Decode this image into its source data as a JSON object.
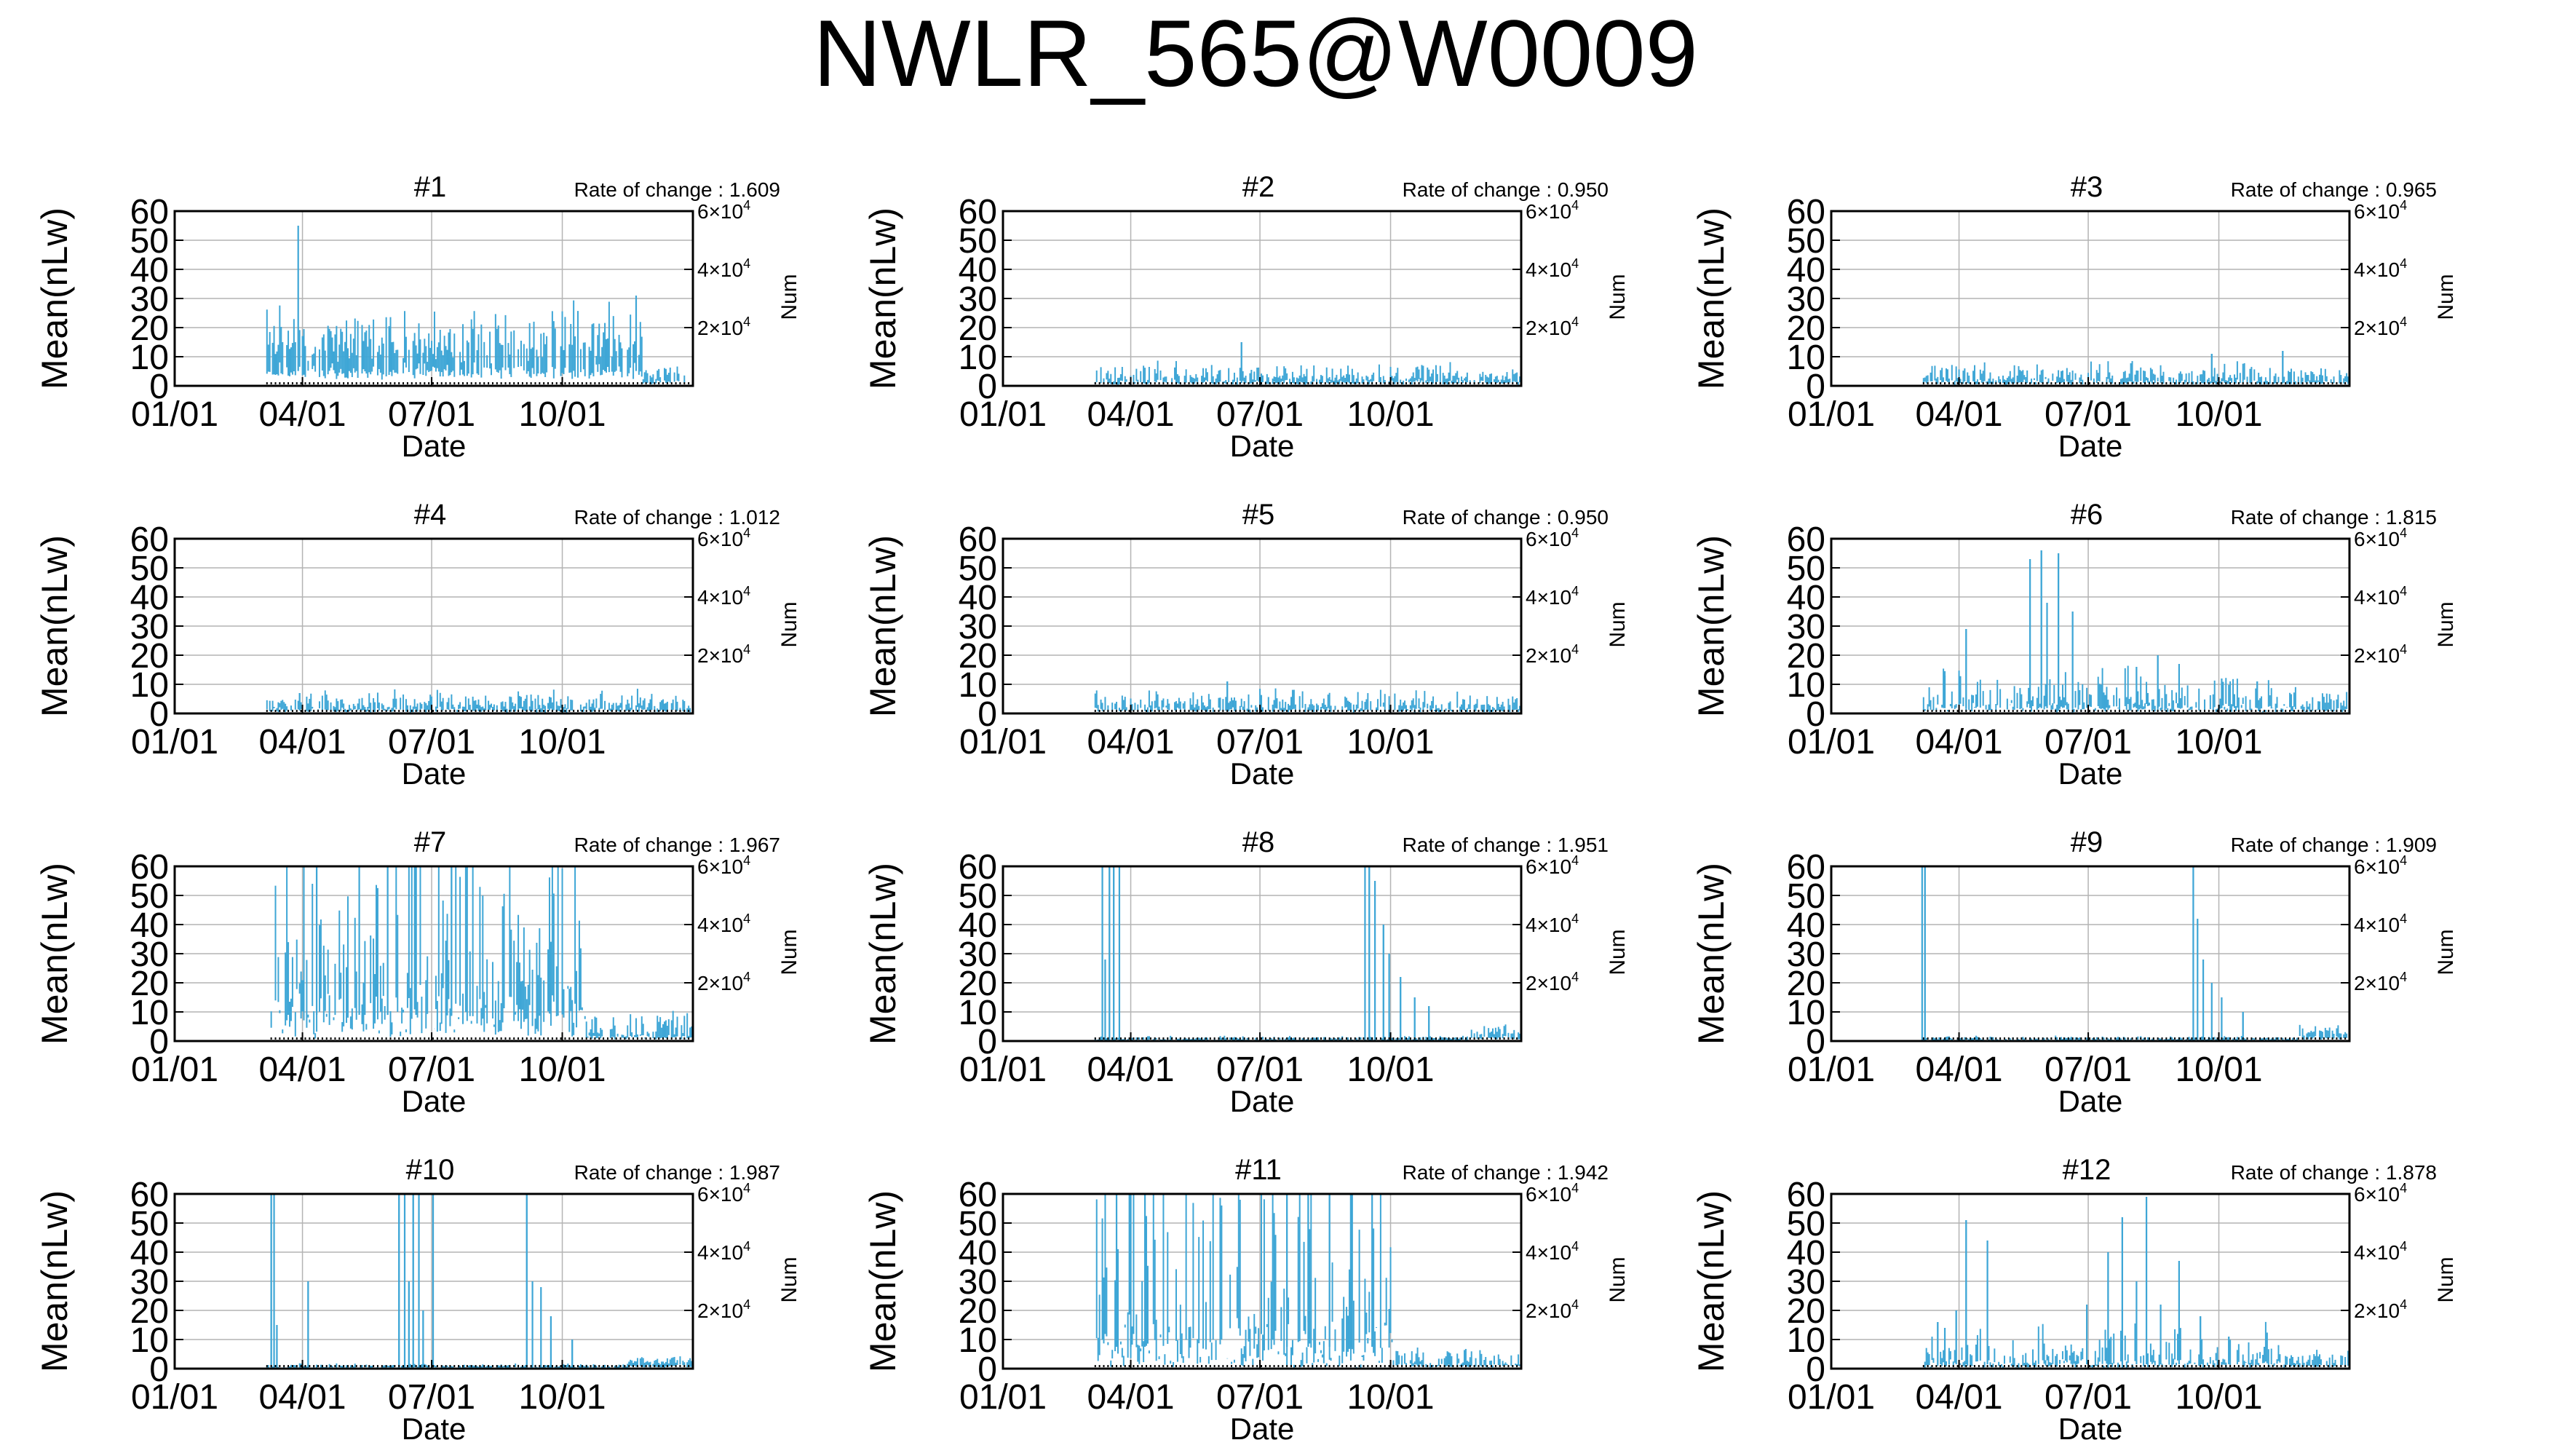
{
  "title": "NWLR_565@W0009",
  "colors": {
    "series": "#3ea6d6",
    "grid": "#b4b4b4",
    "axis": "#000000",
    "background": "#ffffff"
  },
  "chart_data": [
    {
      "type": "bar",
      "title": "#1",
      "rate_label": "Rate of change : 1.609",
      "xlabel": "Date",
      "ylabel": "Mean(nLw)",
      "y2label": "Num",
      "xticks": [
        "01/01",
        "04/01",
        "07/01",
        "10/01"
      ],
      "xtick_days": [
        0,
        90,
        181,
        273
      ],
      "xlim": [
        0,
        365
      ],
      "yticks": [
        0,
        10,
        20,
        30,
        40,
        50,
        60
      ],
      "ylim": [
        0,
        60
      ],
      "y2ticks": [
        {
          "base": "2×10",
          "exp": "4"
        },
        {
          "base": "4×10",
          "exp": "4"
        },
        {
          "base": "6×10",
          "exp": "4"
        }
      ],
      "y2lim": [
        0,
        60000
      ],
      "grid": true,
      "data_start_day": 65,
      "data_end_day": 365,
      "base": 17,
      "spread": 4,
      "noise": 0.45,
      "peaks": [
        {
          "day": 87,
          "value": 55
        },
        {
          "day": 325,
          "value": 31
        }
      ],
      "late_level": 5,
      "late_start": 330
    },
    {
      "type": "bar",
      "title": "#2",
      "rate_label": "Rate of change : 0.950",
      "xlabel": "Date",
      "ylabel": "Mean(nLw)",
      "y2label": "Num",
      "xticks": [
        "01/01",
        "04/01",
        "07/01",
        "10/01"
      ],
      "xtick_days": [
        0,
        90,
        181,
        273
      ],
      "xlim": [
        0,
        365
      ],
      "yticks": [
        0,
        10,
        20,
        30,
        40,
        50,
        60
      ],
      "ylim": [
        0,
        60
      ],
      "y2ticks": [
        {
          "base": "2×10",
          "exp": "4"
        },
        {
          "base": "4×10",
          "exp": "4"
        },
        {
          "base": "6×10",
          "exp": "4"
        }
      ],
      "y2lim": [
        0,
        60000
      ],
      "grid": true,
      "data_start_day": 65,
      "data_end_day": 365,
      "base": 4,
      "spread": 2,
      "noise": 0.5,
      "peaks": [
        {
          "day": 168,
          "value": 15
        }
      ],
      "late_level": 4,
      "late_start": 330
    },
    {
      "type": "bar",
      "title": "#3",
      "rate_label": "Rate of change : 0.965",
      "xlabel": "Date",
      "ylabel": "Mean(nLw)",
      "y2label": "Num",
      "xticks": [
        "01/01",
        "04/01",
        "07/01",
        "10/01"
      ],
      "xtick_days": [
        0,
        90,
        181,
        273
      ],
      "xlim": [
        0,
        365
      ],
      "yticks": [
        0,
        10,
        20,
        30,
        40,
        50,
        60
      ],
      "ylim": [
        0,
        60
      ],
      "y2ticks": [
        {
          "base": "2×10",
          "exp": "4"
        },
        {
          "base": "4×10",
          "exp": "4"
        },
        {
          "base": "6×10",
          "exp": "4"
        }
      ],
      "y2lim": [
        0,
        60000
      ],
      "grid": true,
      "data_start_day": 65,
      "data_end_day": 365,
      "base": 4,
      "spread": 2,
      "noise": 0.5,
      "peaks": [
        {
          "day": 268,
          "value": 11
        },
        {
          "day": 318,
          "value": 12
        }
      ],
      "late_level": 4,
      "late_start": 330
    },
    {
      "type": "bar",
      "title": "#4",
      "rate_label": "Rate of change : 1.012",
      "xlabel": "Date",
      "ylabel": "Mean(nLw)",
      "y2label": "Num",
      "xticks": [
        "01/01",
        "04/01",
        "07/01",
        "10/01"
      ],
      "xtick_days": [
        0,
        90,
        181,
        273
      ],
      "xlim": [
        0,
        365
      ],
      "yticks": [
        0,
        10,
        20,
        30,
        40,
        50,
        60
      ],
      "ylim": [
        0,
        60
      ],
      "y2ticks": [
        {
          "base": "2×10",
          "exp": "4"
        },
        {
          "base": "4×10",
          "exp": "4"
        },
        {
          "base": "6×10",
          "exp": "4"
        }
      ],
      "y2lim": [
        0,
        60000
      ],
      "grid": true,
      "data_start_day": 65,
      "data_end_day": 365,
      "base": 4,
      "spread": 2,
      "noise": 0.5,
      "peaks": [
        {
          "day": 88,
          "value": 7
        }
      ],
      "late_level": 4,
      "late_start": 330
    },
    {
      "type": "bar",
      "title": "#5",
      "rate_label": "Rate of change : 0.950",
      "xlabel": "Date",
      "ylabel": "Mean(nLw)",
      "y2label": "Num",
      "xticks": [
        "01/01",
        "04/01",
        "07/01",
        "10/01"
      ],
      "xtick_days": [
        0,
        90,
        181,
        273
      ],
      "xlim": [
        0,
        365
      ],
      "yticks": [
        0,
        10,
        20,
        30,
        40,
        50,
        60
      ],
      "ylim": [
        0,
        60
      ],
      "y2ticks": [
        {
          "base": "2×10",
          "exp": "4"
        },
        {
          "base": "4×10",
          "exp": "4"
        },
        {
          "base": "6×10",
          "exp": "4"
        }
      ],
      "y2lim": [
        0,
        60000
      ],
      "grid": true,
      "data_start_day": 65,
      "data_end_day": 365,
      "base": 4,
      "spread": 2,
      "noise": 0.5,
      "peaks": [
        {
          "day": 158,
          "value": 11
        }
      ],
      "late_level": 4,
      "late_start": 330
    },
    {
      "type": "bar",
      "title": "#6",
      "rate_label": "Rate of change : 1.815",
      "xlabel": "Date",
      "ylabel": "Mean(nLw)",
      "y2label": "Num",
      "xticks": [
        "01/01",
        "04/01",
        "07/01",
        "10/01"
      ],
      "xtick_days": [
        0,
        90,
        181,
        273
      ],
      "xlim": [
        0,
        365
      ],
      "yticks": [
        0,
        10,
        20,
        30,
        40,
        50,
        60
      ],
      "ylim": [
        0,
        60
      ],
      "y2ticks": [
        {
          "base": "2×10",
          "exp": "4"
        },
        {
          "base": "4×10",
          "exp": "4"
        },
        {
          "base": "6×10",
          "exp": "4"
        }
      ],
      "y2lim": [
        0,
        60000
      ],
      "grid": true,
      "data_start_day": 65,
      "data_end_day": 365,
      "base": 6,
      "spread": 4,
      "noise": 0.8,
      "peaks": [
        {
          "day": 80,
          "value": 13
        },
        {
          "day": 95,
          "value": 29
        },
        {
          "day": 140,
          "value": 53
        },
        {
          "day": 148,
          "value": 56
        },
        {
          "day": 152,
          "value": 38
        },
        {
          "day": 160,
          "value": 55
        },
        {
          "day": 170,
          "value": 35
        },
        {
          "day": 215,
          "value": 16
        },
        {
          "day": 230,
          "value": 20
        },
        {
          "day": 245,
          "value": 17
        },
        {
          "day": 275,
          "value": 12
        },
        {
          "day": 300,
          "value": 11
        }
      ],
      "late_level": 4,
      "late_start": 330
    },
    {
      "type": "bar",
      "title": "#7",
      "rate_label": "Rate of change : 1.967",
      "xlabel": "Date",
      "ylabel": "Mean(nLw)",
      "y2label": "Num",
      "xticks": [
        "01/01",
        "04/01",
        "07/01",
        "10/01"
      ],
      "xtick_days": [
        0,
        90,
        181,
        273
      ],
      "xlim": [
        0,
        365
      ],
      "yticks": [
        0,
        10,
        20,
        30,
        40,
        50,
        60
      ],
      "ylim": [
        0,
        60
      ],
      "y2ticks": [
        {
          "base": "2×10",
          "exp": "4"
        },
        {
          "base": "4×10",
          "exp": "4"
        },
        {
          "base": "6×10",
          "exp": "4"
        }
      ],
      "y2lim": [
        0,
        60000
      ],
      "grid": true,
      "data_start_day": 68,
      "data_end_day": 365,
      "base": 30,
      "spread": 25,
      "noise": 0.9,
      "peaks": [
        {
          "day": 100,
          "value": 60
        },
        {
          "day": 130,
          "value": 60
        },
        {
          "day": 150,
          "value": 60
        },
        {
          "day": 170,
          "value": 60
        },
        {
          "day": 195,
          "value": 60
        }
      ],
      "late_level": 5,
      "late_start": 290
    },
    {
      "type": "bar",
      "title": "#8",
      "rate_label": "Rate of change : 1.951",
      "xlabel": "Date",
      "ylabel": "Mean(nLw)",
      "y2label": "Num",
      "xticks": [
        "01/01",
        "04/01",
        "07/01",
        "10/01"
      ],
      "xtick_days": [
        0,
        90,
        181,
        273
      ],
      "xlim": [
        0,
        365
      ],
      "yticks": [
        0,
        10,
        20,
        30,
        40,
        50,
        60
      ],
      "ylim": [
        0,
        60
      ],
      "y2ticks": [
        {
          "base": "2×10",
          "exp": "4"
        },
        {
          "base": "4×10",
          "exp": "4"
        },
        {
          "base": "6×10",
          "exp": "4"
        }
      ],
      "y2lim": [
        0,
        60000
      ],
      "grid": true,
      "data_start_day": 65,
      "data_end_day": 365,
      "base": 1,
      "spread": 0.5,
      "noise": 0.3,
      "peaks": [
        {
          "day": 70,
          "value": 60
        },
        {
          "day": 72,
          "value": 28
        },
        {
          "day": 75,
          "value": 60
        },
        {
          "day": 78,
          "value": 60
        },
        {
          "day": 82,
          "value": 60
        },
        {
          "day": 255,
          "value": 60
        },
        {
          "day": 258,
          "value": 60
        },
        {
          "day": 262,
          "value": 55
        },
        {
          "day": 268,
          "value": 40
        },
        {
          "day": 272,
          "value": 30
        },
        {
          "day": 280,
          "value": 22
        },
        {
          "day": 290,
          "value": 15
        },
        {
          "day": 300,
          "value": 12
        }
      ],
      "late_level": 4,
      "late_start": 330
    },
    {
      "type": "bar",
      "title": "#9",
      "rate_label": "Rate of change : 1.909",
      "xlabel": "Date",
      "ylabel": "Mean(nLw)",
      "y2label": "Num",
      "xticks": [
        "01/01",
        "04/01",
        "07/01",
        "10/01"
      ],
      "xtick_days": [
        0,
        90,
        181,
        273
      ],
      "xlim": [
        0,
        365
      ],
      "yticks": [
        0,
        10,
        20,
        30,
        40,
        50,
        60
      ],
      "ylim": [
        0,
        60
      ],
      "y2ticks": [
        {
          "base": "2×10",
          "exp": "4"
        },
        {
          "base": "4×10",
          "exp": "4"
        },
        {
          "base": "6×10",
          "exp": "4"
        }
      ],
      "y2lim": [
        0,
        60000
      ],
      "grid": true,
      "data_start_day": 65,
      "data_end_day": 365,
      "base": 1,
      "spread": 0.5,
      "noise": 0.3,
      "peaks": [
        {
          "day": 64,
          "value": 60
        },
        {
          "day": 66,
          "value": 60
        },
        {
          "day": 255,
          "value": 60
        },
        {
          "day": 258,
          "value": 42
        },
        {
          "day": 262,
          "value": 28
        },
        {
          "day": 268,
          "value": 20
        },
        {
          "day": 275,
          "value": 15
        },
        {
          "day": 290,
          "value": 10
        }
      ],
      "late_level": 4,
      "late_start": 330
    },
    {
      "type": "bar",
      "title": "#10",
      "rate_label": "Rate of change : 1.987",
      "xlabel": "Date",
      "ylabel": "Mean(nLw)",
      "y2label": "Num",
      "xticks": [
        "01/01",
        "04/01",
        "07/01",
        "10/01"
      ],
      "xtick_days": [
        0,
        90,
        181,
        273
      ],
      "xlim": [
        0,
        365
      ],
      "yticks": [
        0,
        10,
        20,
        30,
        40,
        50,
        60
      ],
      "ylim": [
        0,
        60
      ],
      "y2ticks": [
        {
          "base": "2×10",
          "exp": "4"
        },
        {
          "base": "4×10",
          "exp": "4"
        },
        {
          "base": "6×10",
          "exp": "4"
        }
      ],
      "y2lim": [
        0,
        60000
      ],
      "grid": true,
      "data_start_day": 65,
      "data_end_day": 365,
      "base": 1,
      "spread": 0.5,
      "noise": 0.3,
      "peaks": [
        {
          "day": 68,
          "value": 60
        },
        {
          "day": 70,
          "value": 60
        },
        {
          "day": 72,
          "value": 15
        },
        {
          "day": 94,
          "value": 30
        },
        {
          "day": 158,
          "value": 60
        },
        {
          "day": 162,
          "value": 60
        },
        {
          "day": 165,
          "value": 30
        },
        {
          "day": 168,
          "value": 60
        },
        {
          "day": 172,
          "value": 60
        },
        {
          "day": 175,
          "value": 20
        },
        {
          "day": 182,
          "value": 60
        },
        {
          "day": 248,
          "value": 60
        },
        {
          "day": 252,
          "value": 30
        },
        {
          "day": 258,
          "value": 28
        },
        {
          "day": 265,
          "value": 18
        },
        {
          "day": 280,
          "value": 10
        }
      ],
      "late_level": 3,
      "late_start": 320
    },
    {
      "type": "bar",
      "title": "#11",
      "rate_label": "Rate of change : 1.942",
      "xlabel": "Date",
      "ylabel": "Mean(nLw)",
      "y2label": "Num",
      "xticks": [
        "01/01",
        "04/01",
        "07/01",
        "10/01"
      ],
      "xtick_days": [
        0,
        90,
        181,
        273
      ],
      "xlim": [
        0,
        365
      ],
      "yticks": [
        0,
        10,
        20,
        30,
        40,
        50,
        60
      ],
      "ylim": [
        0,
        60
      ],
      "y2ticks": [
        {
          "base": "2×10",
          "exp": "4"
        },
        {
          "base": "4×10",
          "exp": "4"
        },
        {
          "base": "6×10",
          "exp": "4"
        }
      ],
      "y2lim": [
        0,
        60000
      ],
      "grid": true,
      "data_start_day": 65,
      "data_end_day": 365,
      "base": 25,
      "spread": 25,
      "noise": 0.9,
      "peaks": [
        {
          "day": 80,
          "value": 60
        },
        {
          "day": 90,
          "value": 60
        },
        {
          "day": 100,
          "value": 60
        },
        {
          "day": 200,
          "value": 60
        },
        {
          "day": 215,
          "value": 60
        },
        {
          "day": 230,
          "value": 60
        },
        {
          "day": 245,
          "value": 60
        },
        {
          "day": 260,
          "value": 60
        }
      ],
      "late_level": 4,
      "late_start": 275
    },
    {
      "type": "bar",
      "title": "#12",
      "rate_label": "Rate of change : 1.878",
      "xlabel": "Date",
      "ylabel": "Mean(nLw)",
      "y2label": "Num",
      "xticks": [
        "01/01",
        "04/01",
        "07/01",
        "10/01"
      ],
      "xtick_days": [
        0,
        90,
        181,
        273
      ],
      "xlim": [
        0,
        365
      ],
      "yticks": [
        0,
        10,
        20,
        30,
        40,
        50,
        60
      ],
      "ylim": [
        0,
        60
      ],
      "y2ticks": [
        {
          "base": "2×10",
          "exp": "4"
        },
        {
          "base": "4×10",
          "exp": "4"
        },
        {
          "base": "6×10",
          "exp": "4"
        }
      ],
      "y2lim": [
        0,
        60000
      ],
      "grid": true,
      "data_start_day": 65,
      "data_end_day": 365,
      "base": 5,
      "spread": 5,
      "noise": 0.7,
      "peaks": [
        {
          "day": 75,
          "value": 16
        },
        {
          "day": 80,
          "value": 14
        },
        {
          "day": 88,
          "value": 20
        },
        {
          "day": 95,
          "value": 51
        },
        {
          "day": 110,
          "value": 44
        },
        {
          "day": 180,
          "value": 22
        },
        {
          "day": 195,
          "value": 40
        },
        {
          "day": 205,
          "value": 52
        },
        {
          "day": 215,
          "value": 30
        },
        {
          "day": 222,
          "value": 59
        },
        {
          "day": 232,
          "value": 22
        },
        {
          "day": 245,
          "value": 37
        },
        {
          "day": 260,
          "value": 18
        },
        {
          "day": 280,
          "value": 11
        }
      ],
      "late_level": 4,
      "late_start": 320
    }
  ]
}
